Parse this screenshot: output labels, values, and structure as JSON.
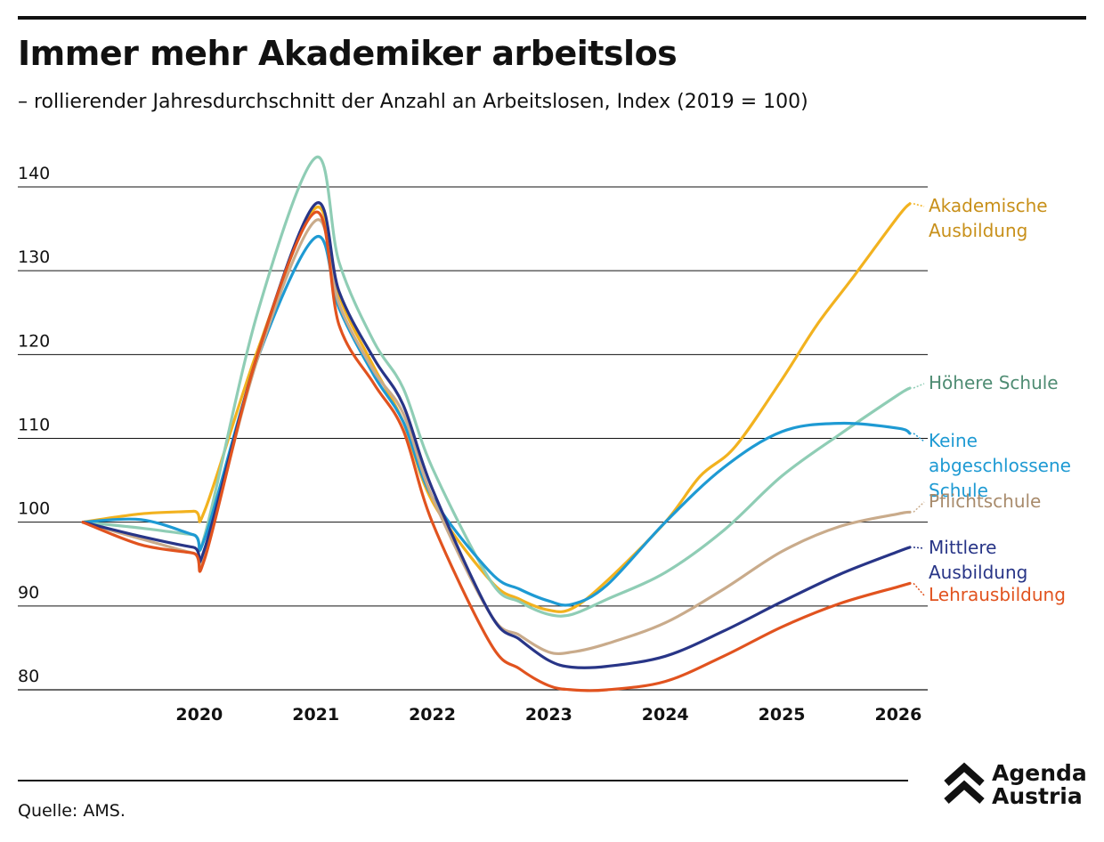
{
  "header": {
    "title": "Immer mehr Akademiker arbeitslos",
    "subtitle": "– rollierender Jahresdurchschnitt der Anzahl an Arbeitslosen, Index (2019 = 100)"
  },
  "footer": {
    "source": "Quelle: AMS.",
    "logo_line1": "Agenda",
    "logo_line2": "Austria"
  },
  "chart_data": {
    "type": "line",
    "title": "Immer mehr Akademiker arbeitslos",
    "xlabel": "",
    "ylabel": "",
    "xlim": [
      2019.0,
      2026.1
    ],
    "ylim": [
      80,
      145
    ],
    "yticks": [
      80,
      90,
      100,
      110,
      120,
      130,
      140
    ],
    "xticks": [
      2020,
      2021,
      2022,
      2023,
      2024,
      2025,
      2026
    ],
    "grid": true,
    "legend": "right, at line ends",
    "series": [
      {
        "name": "Akademische Ausbildung",
        "color": "#f2b21f",
        "label_color": "#c8901a",
        "x": [
          2019.0,
          2019.5,
          2019.95,
          2020.05,
          2020.5,
          2021.0,
          2021.2,
          2021.5,
          2021.75,
          2022.0,
          2022.5,
          2022.75,
          2023.0,
          2023.2,
          2023.5,
          2024.0,
          2024.3,
          2024.6,
          2025.0,
          2025.3,
          2025.6,
          2026.0,
          2026.1
        ],
        "values": [
          100,
          101,
          101.3,
          101.5,
          120.5,
          137.5,
          127,
          118.5,
          112,
          102.5,
          93,
          90.8,
          89.5,
          89.7,
          93,
          100,
          105.5,
          109,
          117,
          123.5,
          129,
          136.5,
          138
        ]
      },
      {
        "name": "Höhere Schule",
        "color": "#8fcdb5",
        "label_color": "#4f8c73",
        "x": [
          2019.0,
          2019.5,
          2019.95,
          2020.05,
          2020.5,
          2021.0,
          2021.2,
          2021.5,
          2021.75,
          2022.0,
          2022.5,
          2022.75,
          2023.0,
          2023.2,
          2023.5,
          2024.0,
          2024.5,
          2025.0,
          2025.5,
          2026.0,
          2026.1
        ],
        "values": [
          100,
          99.3,
          98.5,
          98.6,
          125,
          143.5,
          131,
          121.5,
          116,
          106.5,
          93,
          90.5,
          89,
          89,
          90.8,
          94,
          99,
          105.5,
          110.5,
          115.2,
          116
        ]
      },
      {
        "name": "Keine abgeschlossene Schule",
        "color": "#1e9ad3",
        "label_color": "#1e9ad3",
        "x": [
          2019.0,
          2019.5,
          2019.95,
          2020.05,
          2020.5,
          2021.0,
          2021.2,
          2021.5,
          2021.75,
          2022.0,
          2022.5,
          2022.75,
          2023.0,
          2023.2,
          2023.5,
          2024.0,
          2024.5,
          2025.0,
          2025.5,
          2026.0,
          2026.1
        ],
        "values": [
          100,
          100.3,
          98.5,
          98.2,
          119.5,
          134,
          125.5,
          117.5,
          112,
          103,
          94,
          92,
          90.6,
          90.2,
          92.5,
          100,
          106.5,
          110.8,
          111.8,
          111.2,
          110.6
        ]
      },
      {
        "name": "Pflichtschule",
        "color": "#c9ab8b",
        "label_color": "#a88b6c",
        "x": [
          2019.0,
          2019.5,
          2019.95,
          2020.05,
          2020.5,
          2021.0,
          2021.2,
          2021.5,
          2021.75,
          2022.0,
          2022.5,
          2022.75,
          2023.0,
          2023.2,
          2023.5,
          2024.0,
          2024.5,
          2025.0,
          2025.5,
          2026.0,
          2026.1
        ],
        "values": [
          100,
          98,
          96.3,
          96.2,
          119.5,
          136,
          126,
          118,
          113,
          103,
          89,
          86.5,
          84.5,
          84.5,
          85.5,
          88,
          92,
          96.5,
          99.5,
          101,
          101.2
        ]
      },
      {
        "name": "Mittlere Ausbildung",
        "color": "#283587",
        "label_color": "#283587",
        "x": [
          2019.0,
          2019.5,
          2019.95,
          2020.05,
          2020.5,
          2021.0,
          2021.2,
          2021.5,
          2021.75,
          2022.0,
          2022.5,
          2022.75,
          2023.0,
          2023.2,
          2023.5,
          2024.0,
          2024.5,
          2025.0,
          2025.5,
          2026.0,
          2026.1
        ],
        "values": [
          100,
          98.3,
          97,
          97,
          120,
          138,
          127.5,
          119.5,
          114,
          104,
          89,
          86,
          83.5,
          82.7,
          82.8,
          84,
          87,
          90.5,
          93.8,
          96.5,
          97
        ]
      },
      {
        "name": "Lehrausbildung",
        "color": "#e1531f",
        "label_color": "#e1531f",
        "x": [
          2019.0,
          2019.5,
          2019.95,
          2020.05,
          2020.5,
          2021.0,
          2021.2,
          2021.5,
          2021.75,
          2022.0,
          2022.5,
          2022.75,
          2023.0,
          2023.2,
          2023.5,
          2024.0,
          2024.5,
          2025.0,
          2025.5,
          2026.0,
          2026.1
        ],
        "values": [
          100,
          97.3,
          96.3,
          95.8,
          120,
          137,
          123.5,
          116.5,
          111,
          100,
          85.5,
          82.5,
          80.5,
          80,
          80,
          81,
          84,
          87.5,
          90.3,
          92.3,
          92.7
        ]
      }
    ]
  }
}
